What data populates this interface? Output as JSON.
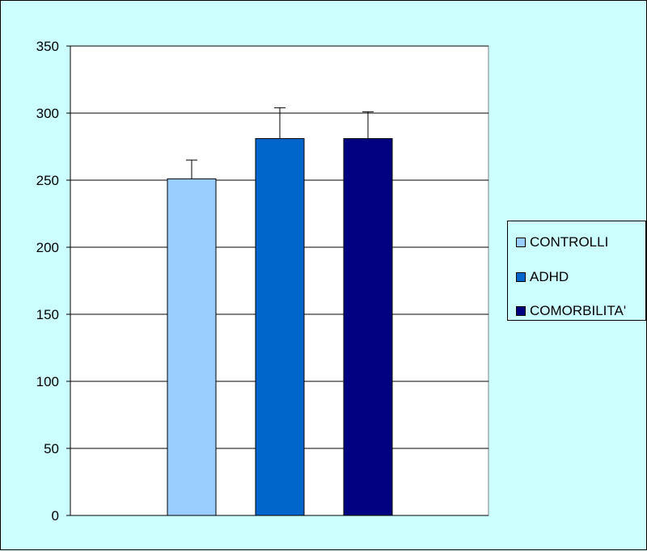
{
  "chart_data": {
    "type": "bar",
    "title": "",
    "xlabel": "",
    "ylabel": "",
    "ylim": [
      0,
      350
    ],
    "yticks": [
      0,
      50,
      100,
      150,
      200,
      250,
      300,
      350
    ],
    "grid": true,
    "legend_position": "right",
    "series": [
      {
        "name": "CONTROLLI",
        "value": 251,
        "error": 14,
        "color": "#99ccff"
      },
      {
        "name": "ADHD",
        "value": 281,
        "error": 23,
        "color": "#0066cc"
      },
      {
        "name": "COMORBILITA'",
        "value": 281,
        "error": 20,
        "color": "#000080"
      }
    ]
  },
  "colors": {
    "background": "#ccffff",
    "plot_background": "#ffffff",
    "gridline": "#000000"
  }
}
